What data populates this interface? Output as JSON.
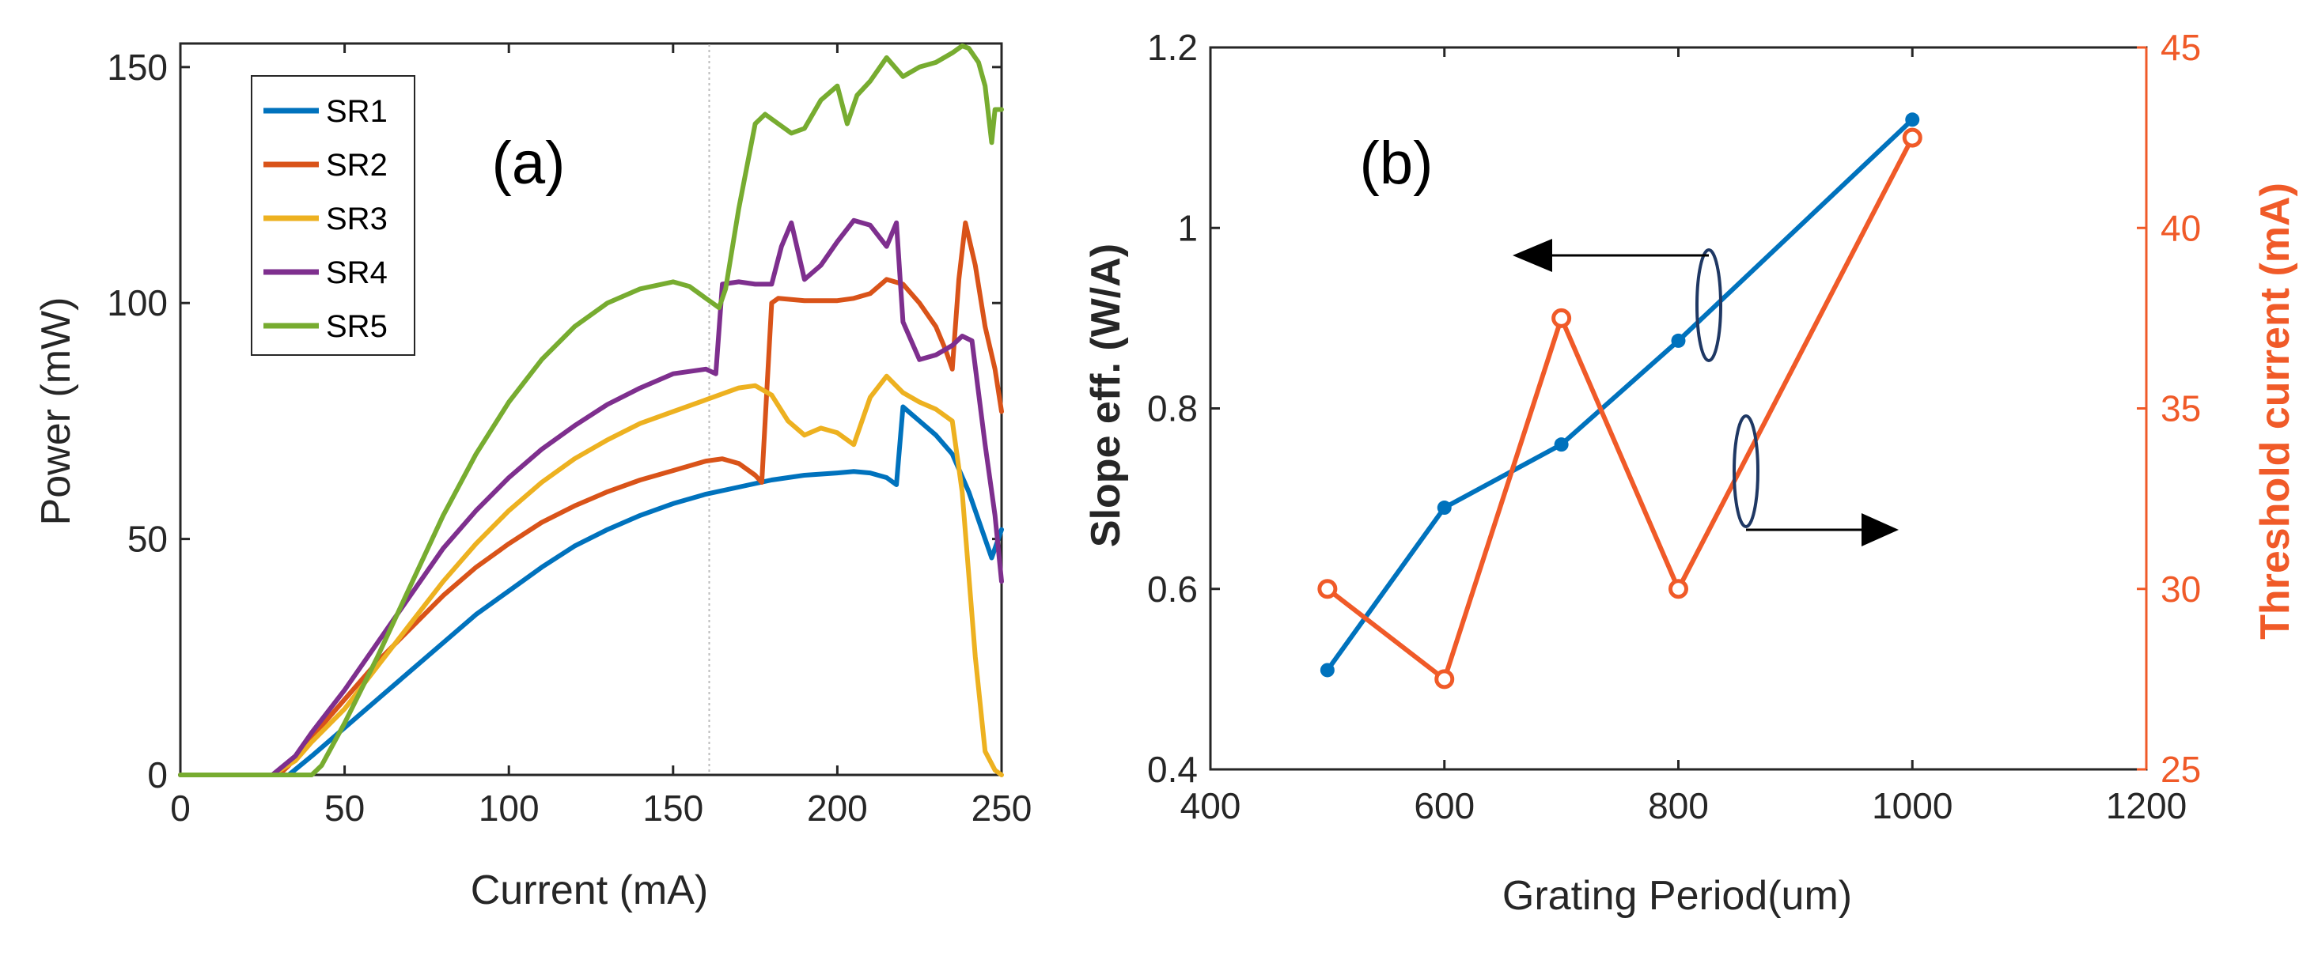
{
  "chart_data": [
    {
      "type": "line",
      "panel_label": "(a)",
      "xlabel": "Current (mA)",
      "ylabel": "Power (mW)",
      "xlim": [
        0,
        250
      ],
      "ylim": [
        0,
        155
      ],
      "xticks": [
        "0",
        "50",
        "100",
        "150",
        "200",
        "250"
      ],
      "yticks": [
        "0",
        "50",
        "100",
        "150"
      ],
      "legend_location": "top-left",
      "series": [
        {
          "name": "SR1",
          "color": "#0072BD",
          "x": [
            0,
            30,
            33,
            40,
            50,
            60,
            70,
            80,
            90,
            100,
            110,
            120,
            130,
            140,
            150,
            160,
            170,
            180,
            190,
            200,
            205,
            210,
            215,
            218,
            220,
            225,
            230,
            235,
            240,
            245,
            247,
            250
          ],
          "y": [
            0,
            0,
            0,
            4,
            10,
            16,
            22,
            28,
            34,
            39,
            44,
            48.5,
            52,
            55,
            57.5,
            59.5,
            61,
            62.5,
            63.5,
            64,
            64.3,
            64,
            63,
            61.5,
            78,
            75,
            72,
            68,
            60,
            50,
            46,
            52
          ]
        },
        {
          "name": "SR2",
          "color": "#D95319",
          "x": [
            0,
            30,
            33,
            40,
            50,
            60,
            70,
            80,
            90,
            100,
            110,
            120,
            130,
            140,
            150,
            160,
            165,
            170,
            175,
            177,
            180,
            182,
            190,
            200,
            205,
            210,
            215,
            220,
            225,
            230,
            233,
            235,
            237,
            239,
            242,
            245,
            248,
            250
          ],
          "y": [
            0,
            0,
            2,
            8,
            16,
            24,
            31,
            38,
            44,
            49,
            53.5,
            57,
            60,
            62.5,
            64.5,
            66.5,
            67,
            66,
            63.5,
            62,
            100,
            101,
            100.5,
            100.5,
            101,
            102,
            105,
            104,
            100,
            95,
            90,
            86,
            105,
            117,
            108,
            95,
            86,
            77
          ]
        },
        {
          "name": "SR3",
          "color": "#EDB120",
          "x": [
            0,
            28,
            35,
            40,
            50,
            60,
            70,
            80,
            90,
            100,
            110,
            120,
            130,
            140,
            150,
            160,
            170,
            175,
            180,
            185,
            190,
            195,
            200,
            205,
            210,
            215,
            220,
            225,
            230,
            235,
            238,
            242,
            245,
            248,
            250
          ],
          "y": [
            0,
            0,
            3,
            7,
            14,
            23,
            32,
            41,
            49,
            56,
            62,
            67,
            71,
            74.5,
            77,
            79.5,
            82,
            82.5,
            80.5,
            75,
            72,
            73.5,
            72.5,
            70,
            80,
            84.5,
            81,
            79,
            77.5,
            75,
            60,
            25,
            5,
            1,
            0
          ]
        },
        {
          "name": "SR4",
          "color": "#7E2F8E",
          "x": [
            0,
            28,
            35,
            40,
            50,
            60,
            70,
            80,
            90,
            100,
            110,
            120,
            130,
            140,
            150,
            160,
            163,
            165,
            170,
            175,
            180,
            183,
            186,
            190,
            195,
            200,
            205,
            210,
            215,
            218,
            220,
            225,
            230,
            235,
            238,
            241,
            245,
            248,
            250
          ],
          "y": [
            0,
            0,
            4,
            9,
            18,
            28,
            38,
            48,
            56,
            63,
            69,
            74,
            78.5,
            82,
            85,
            86,
            85,
            104,
            104.5,
            104,
            104,
            112,
            117,
            105,
            108,
            113,
            117.5,
            116.5,
            112,
            117,
            96,
            88,
            89,
            91,
            93,
            92,
            70,
            55,
            41
          ]
        },
        {
          "name": "SR5",
          "color": "#77AC30",
          "x": [
            0,
            40,
            43,
            50,
            60,
            70,
            80,
            90,
            100,
            110,
            120,
            130,
            140,
            150,
            155,
            160,
            164,
            166,
            170,
            175,
            178,
            182,
            186,
            190,
            195,
            200,
            203,
            206,
            210,
            215,
            220,
            225,
            230,
            235,
            238,
            240,
            243,
            245,
            247,
            248,
            250
          ],
          "y": [
            0,
            0,
            2,
            11,
            25,
            40,
            55,
            68,
            79,
            88,
            95,
            100,
            103,
            104.5,
            103.5,
            101,
            99,
            103,
            120,
            138,
            140,
            138,
            136,
            137,
            143,
            146,
            138,
            144,
            147,
            152,
            148,
            150,
            151,
            153,
            154.5,
            154,
            151,
            146,
            134,
            141,
            141
          ]
        }
      ],
      "vline": {
        "x": 161
      }
    },
    {
      "type": "line",
      "panel_label": "(b)",
      "xlabel": "Grating Period(um)",
      "ylabel_left": "Slope eff. (W/A)",
      "ylabel_right": "Threshold current (mA)",
      "xlim": [
        400,
        1200
      ],
      "ylim_left": [
        0.4,
        1.2
      ],
      "ylim_right": [
        25,
        45
      ],
      "xticks": [
        "400",
        "600",
        "800",
        "1000",
        "1200"
      ],
      "yticks_left": [
        "0.4",
        "0.6",
        "0.8",
        "1",
        "1.2"
      ],
      "yticks_right": [
        "25",
        "30",
        "35",
        "40",
        "45"
      ],
      "series": [
        {
          "name": "Slope eff.",
          "axis": "left",
          "color": "#0072BD",
          "marker": "dot",
          "x": [
            500,
            600,
            700,
            800,
            1000
          ],
          "y": [
            0.51,
            0.69,
            0.76,
            0.875,
            1.12
          ]
        },
        {
          "name": "Threshold current",
          "axis": "right",
          "color": "#F05A28",
          "marker": "circle",
          "x": [
            500,
            600,
            700,
            800,
            1000
          ],
          "y": [
            30,
            27.5,
            37.5,
            30,
            42.5
          ]
        }
      ],
      "annotations": [
        {
          "type": "ellipse-arrow",
          "points_to": "left axis",
          "at_x": 820,
          "at_y_left": 0.97
        },
        {
          "type": "ellipse-arrow",
          "points_to": "right axis",
          "at_x": 855,
          "at_y_left": 0.74
        }
      ]
    }
  ]
}
